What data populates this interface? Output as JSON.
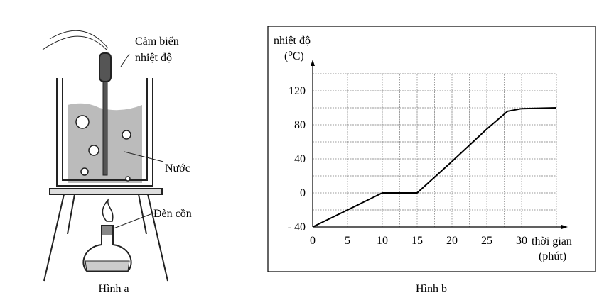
{
  "figure_a": {
    "sensor_label": [
      "Cảm biến",
      "nhiệt độ"
    ],
    "water_label": "Nước",
    "burner_label": "Đèn cồn",
    "caption": "Hình a"
  },
  "chart_data": {
    "type": "line",
    "caption": "Hình b",
    "y_label": "nhiệt độ",
    "y_unit": "(⁰C)",
    "x_label": "thời gian",
    "x_unit": "(phút)",
    "x": [
      0,
      10,
      15,
      20,
      25,
      28,
      30,
      35
    ],
    "series": [
      {
        "color": "#000000",
        "values": [
          -40,
          0,
          0,
          37,
          75,
          96,
          99,
          100
        ]
      }
    ],
    "xlim": [
      0,
      35
    ],
    "ylim": [
      -40,
      140
    ],
    "xticks": [
      0,
      5,
      10,
      15,
      20,
      25,
      30
    ],
    "yticks": [
      {
        "value": -40,
        "label": "- 40"
      },
      0,
      40,
      80,
      120
    ],
    "xgrid": [
      2.5,
      5,
      7.5,
      10,
      12.5,
      15,
      17.5,
      20,
      22.5,
      25,
      27.5,
      30,
      32.5,
      35
    ],
    "ygrid": [
      -20,
      0,
      20,
      40,
      60,
      80,
      100,
      120,
      140
    ],
    "grid": true
  }
}
